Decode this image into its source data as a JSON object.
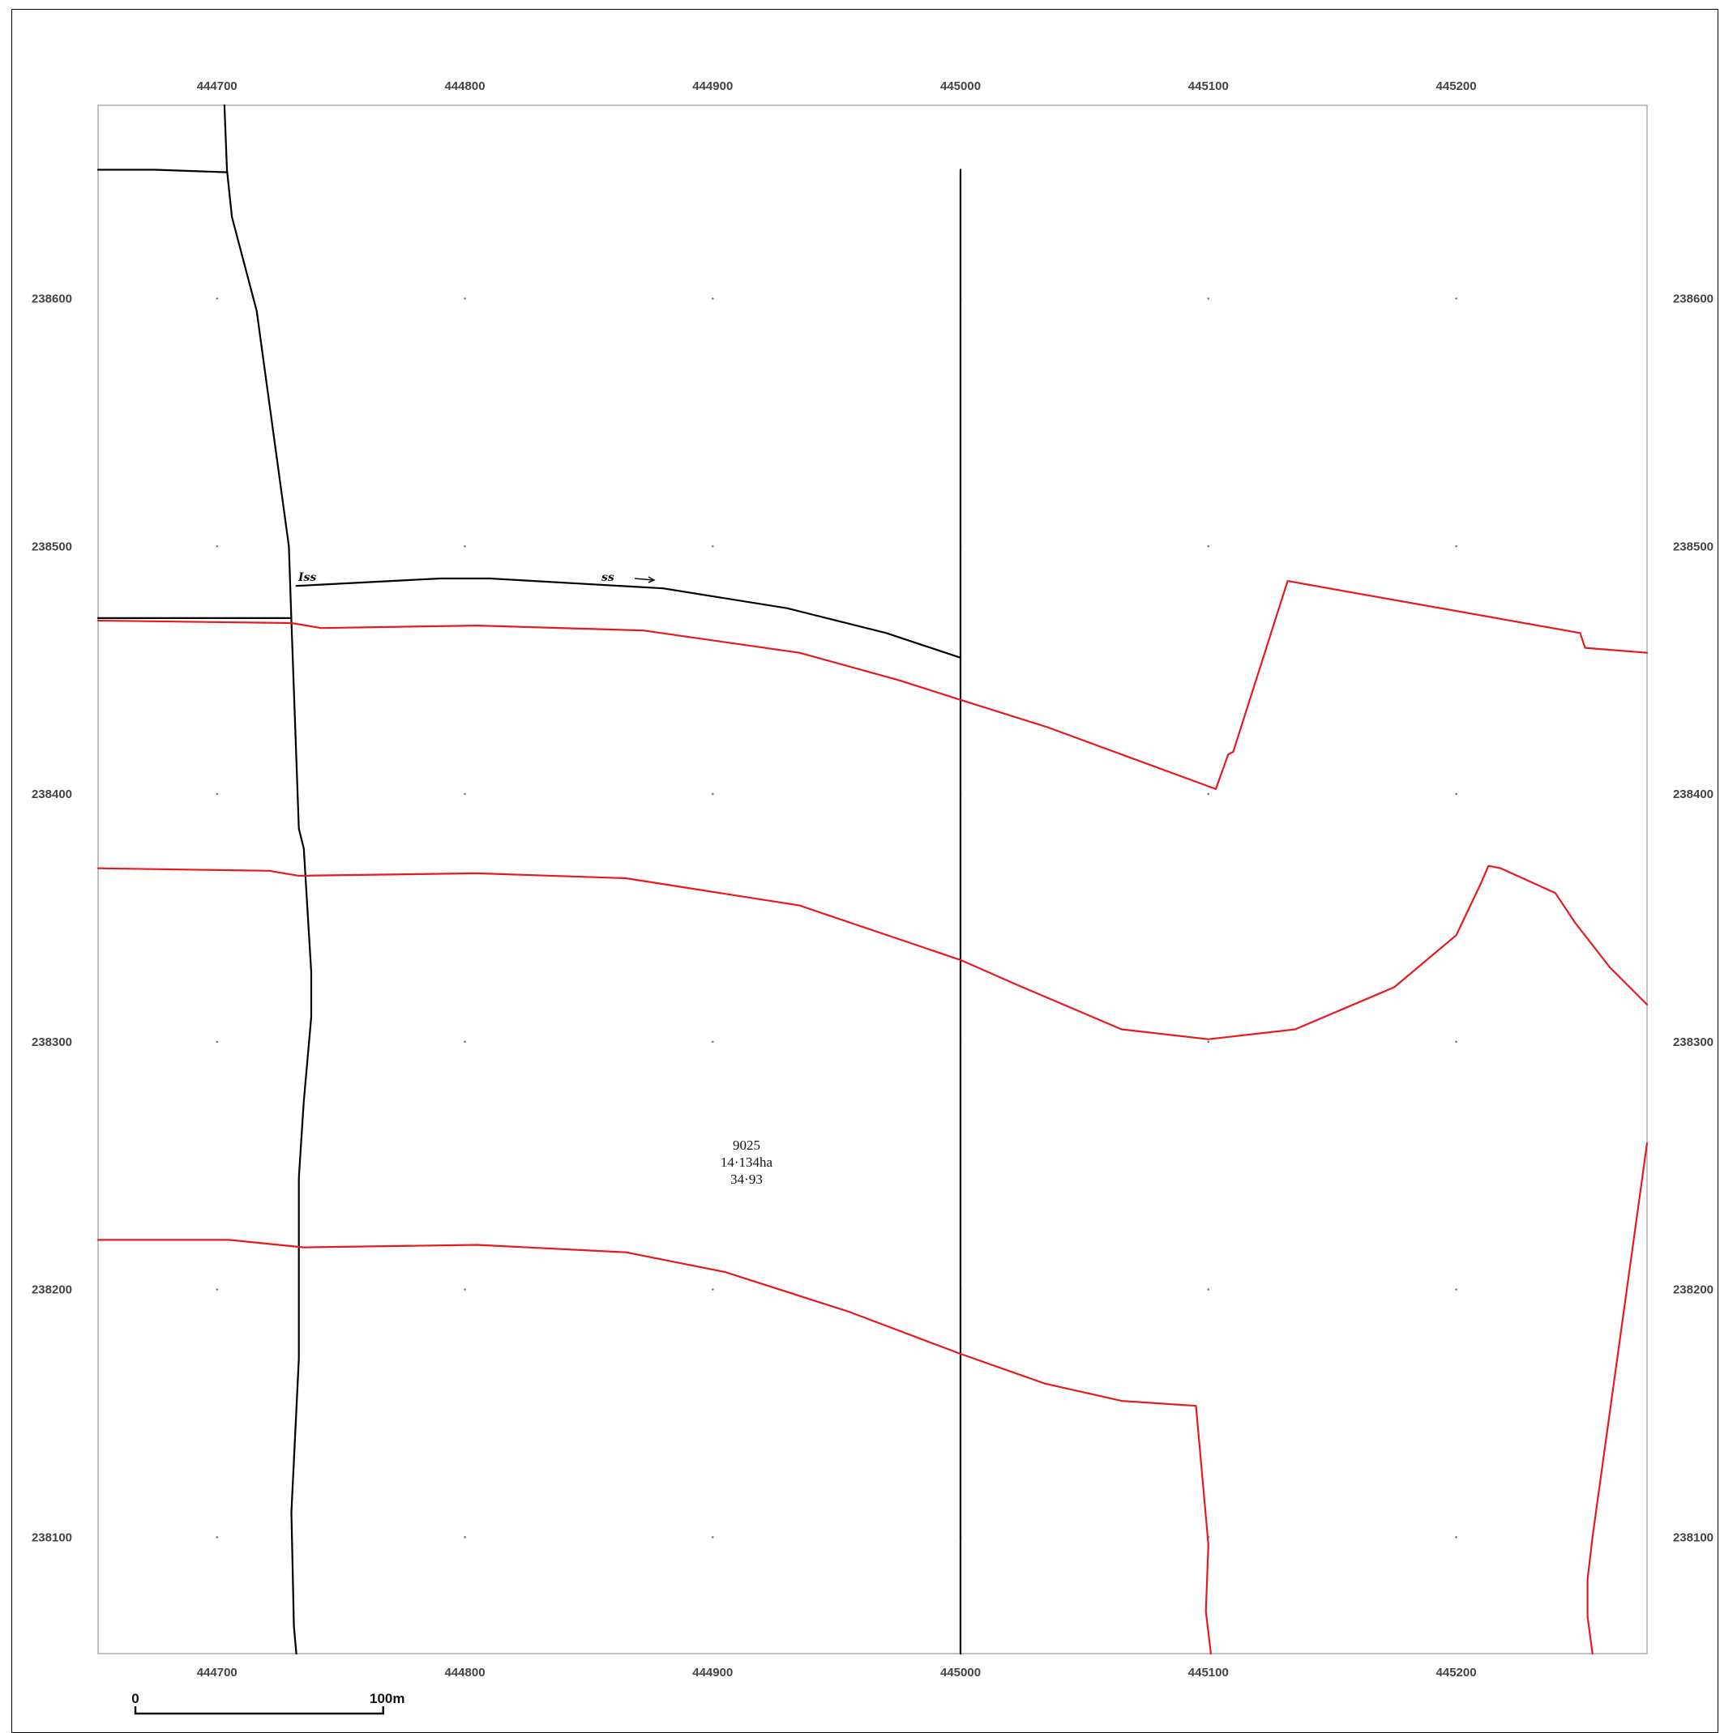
{
  "axes": {
    "x_ticks": [
      444700,
      444800,
      444900,
      445000,
      445100,
      445200
    ],
    "y_ticks": [
      238600,
      238500,
      238400,
      238300,
      238200,
      238100
    ],
    "x_range": [
      444652,
      445277
    ],
    "y_range": [
      238053,
      238678
    ]
  },
  "parcel": {
    "number": "9025",
    "area": "14·134ha",
    "acres": "34·93"
  },
  "annotations": {
    "left_mark": "Iss",
    "right_mark": "ss"
  },
  "scale_bar": {
    "start_label": "0",
    "end_label": "100m",
    "length_m": 100
  },
  "colors": {
    "boundary_black": "#000000",
    "boundary_red": "#e8191d",
    "frame": "#000000",
    "tick_text": "#444444"
  },
  "features": {
    "black_lines": [
      {
        "name": "western-boundary",
        "points": [
          [
            444703,
            238678
          ],
          [
            444704,
            238652
          ],
          [
            444706,
            238633
          ],
          [
            444716,
            238595
          ],
          [
            444729,
            238500
          ],
          [
            444730,
            238470
          ],
          [
            444733,
            238386
          ],
          [
            444735,
            238378
          ],
          [
            444738,
            238328
          ],
          [
            444738,
            238310
          ],
          [
            444735,
            238276
          ],
          [
            444733,
            238245
          ],
          [
            444733,
            238172
          ],
          [
            444730,
            238110
          ],
          [
            444731,
            238064
          ],
          [
            444732,
            238053
          ]
        ]
      },
      {
        "name": "north-west-hedge",
        "points": [
          [
            444652,
            238652
          ],
          [
            444675,
            238652
          ],
          [
            444704,
            238651
          ]
        ]
      },
      {
        "name": "middle-west-hedge",
        "points": [
          [
            444652,
            238471
          ],
          [
            444730,
            238471
          ]
        ]
      },
      {
        "name": "track-north",
        "points": [
          [
            444732,
            238484
          ],
          [
            444790,
            238487
          ],
          [
            444810,
            238487
          ],
          [
            444880,
            238483
          ],
          [
            444930,
            238475
          ],
          [
            444970,
            238465
          ],
          [
            445000,
            238455
          ]
        ]
      },
      {
        "name": "sheet-edge-line",
        "points": [
          [
            445000,
            238652
          ],
          [
            445000,
            238053
          ]
        ]
      }
    ],
    "red_lines": [
      {
        "name": "red-upper",
        "points": [
          [
            444652,
            238470
          ],
          [
            444730,
            238469
          ],
          [
            444742,
            238467
          ],
          [
            444805,
            238468
          ],
          [
            444872,
            238466
          ],
          [
            444935,
            238457
          ],
          [
            444975,
            238446
          ],
          [
            445000,
            238438
          ],
          [
            445035,
            238427
          ],
          [
            445103,
            238402
          ],
          [
            445108,
            238416
          ],
          [
            445110,
            238417
          ],
          [
            445132,
            238486
          ],
          [
            445250,
            238465
          ],
          [
            445252,
            238459
          ],
          [
            445277,
            238457
          ]
        ]
      },
      {
        "name": "red-middle",
        "points": [
          [
            444652,
            238370
          ],
          [
            444721,
            238369
          ],
          [
            444733,
            238367
          ],
          [
            444805,
            238368
          ],
          [
            444865,
            238366
          ],
          [
            444935,
            238355
          ],
          [
            445000,
            238333
          ],
          [
            445025,
            238322
          ],
          [
            445065,
            238305
          ],
          [
            445100,
            238301
          ],
          [
            445135,
            238305
          ],
          [
            445175,
            238322
          ],
          [
            445200,
            238343
          ],
          [
            445210,
            238364
          ],
          [
            445213,
            238371
          ],
          [
            445218,
            238370
          ],
          [
            445240,
            238360
          ],
          [
            445248,
            238348
          ],
          [
            445262,
            238330
          ],
          [
            445277,
            238315
          ]
        ]
      },
      {
        "name": "red-lower",
        "points": [
          [
            444652,
            238220
          ],
          [
            444705,
            238220
          ],
          [
            444735,
            238217
          ],
          [
            444805,
            238218
          ],
          [
            444865,
            238215
          ],
          [
            444905,
            238207
          ],
          [
            444955,
            238191
          ],
          [
            445000,
            238174
          ],
          [
            445034,
            238162
          ],
          [
            445065,
            238155
          ],
          [
            445095,
            238153
          ],
          [
            445100,
            238097
          ],
          [
            445099,
            238070
          ],
          [
            445101,
            238053
          ]
        ]
      },
      {
        "name": "red-east",
        "points": [
          [
            445277,
            238259
          ],
          [
            445255,
            238100
          ],
          [
            445253,
            238083
          ],
          [
            445253,
            238068
          ],
          [
            445255,
            238053
          ]
        ]
      }
    ]
  }
}
